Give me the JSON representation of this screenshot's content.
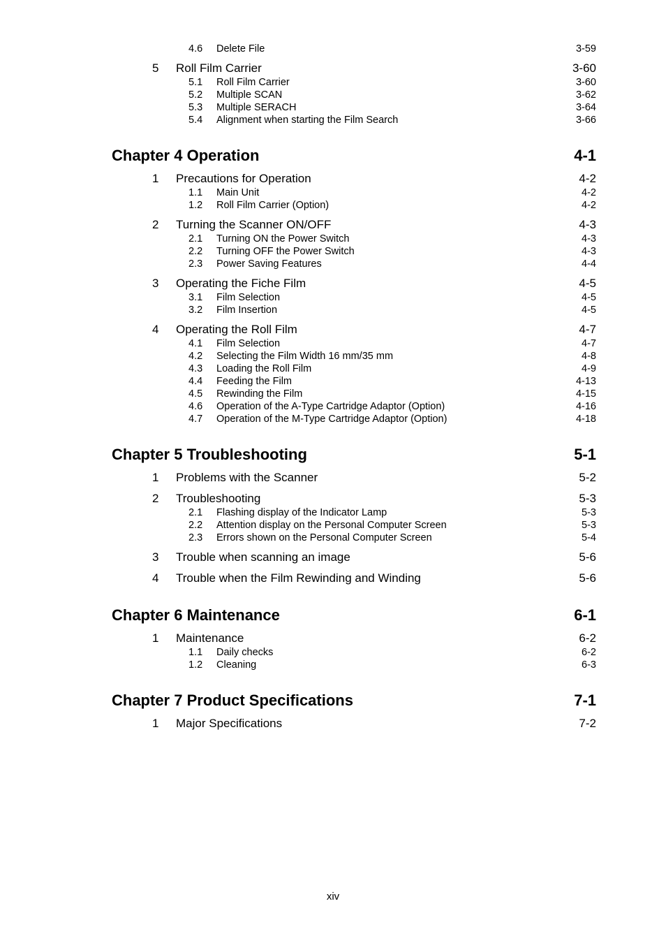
{
  "pre": {
    "subs46": [
      {
        "n": "4.6",
        "t": "Delete File",
        "p": "3-59"
      }
    ],
    "sec5": {
      "n": "5",
      "t": "Roll Film Carrier",
      "p": "3-60"
    },
    "subs5": [
      {
        "n": "5.1",
        "t": "Roll Film Carrier",
        "p": "3-60"
      },
      {
        "n": "5.2",
        "t": "Multiple SCAN",
        "p": "3-62"
      },
      {
        "n": "5.3",
        "t": "Multiple SERACH",
        "p": "3-64"
      },
      {
        "n": "5.4",
        "t": "Alignment when starting the Film Search",
        "p": "3-66"
      }
    ]
  },
  "ch4": {
    "title": "Chapter 4  Operation",
    "p": "4-1",
    "secs": [
      {
        "n": "1",
        "t": "Precautions for Operation",
        "p": "4-2",
        "subs": [
          {
            "n": "1.1",
            "t": "Main Unit",
            "p": "4-2"
          },
          {
            "n": "1.2",
            "t": "Roll Film Carrier (Option)",
            "p": "4-2"
          }
        ]
      },
      {
        "n": "2",
        "t": "Turning the Scanner ON/OFF",
        "p": "4-3",
        "subs": [
          {
            "n": "2.1",
            "t": "Turning ON the Power Switch",
            "p": "4-3"
          },
          {
            "n": "2.2",
            "t": "Turning OFF the Power Switch",
            "p": "4-3"
          },
          {
            "n": "2.3",
            "t": "Power Saving Features",
            "p": "4-4"
          }
        ]
      },
      {
        "n": "3",
        "t": "Operating the Fiche Film",
        "p": "4-5",
        "subs": [
          {
            "n": "3.1",
            "t": "Film Selection",
            "p": "4-5"
          },
          {
            "n": "3.2",
            "t": "Film Insertion",
            "p": "4-5"
          }
        ]
      },
      {
        "n": "4",
        "t": "Operating the Roll Film",
        "p": "4-7",
        "subs": [
          {
            "n": "4.1",
            "t": "Film Selection",
            "p": "4-7"
          },
          {
            "n": "4.2",
            "t": "Selecting the Film Width 16 mm/35 mm",
            "p": "4-8"
          },
          {
            "n": "4.3",
            "t": "Loading the Roll Film",
            "p": "4-9"
          },
          {
            "n": "4.4",
            "t": "Feeding the Film",
            "p": "4-13"
          },
          {
            "n": "4.5",
            "t": "Rewinding the Film",
            "p": "4-15"
          },
          {
            "n": "4.6",
            "t": "Operation of the A-Type Cartridge Adaptor (Option)",
            "p": "4-16"
          },
          {
            "n": "4.7",
            "t": "Operation of the M-Type Cartridge Adaptor (Option)",
            "p": "4-18"
          }
        ]
      }
    ]
  },
  "ch5": {
    "title": "Chapter 5  Troubleshooting",
    "p": "5-1",
    "secs": [
      {
        "n": "1",
        "t": "Problems with the Scanner",
        "p": "5-2",
        "subs": []
      },
      {
        "n": "2",
        "t": "Troubleshooting",
        "p": "5-3",
        "subs": [
          {
            "n": "2.1",
            "t": "Flashing display of the Indicator Lamp",
            "p": "5-3"
          },
          {
            "n": "2.2",
            "t": "Attention display on the Personal Computer Screen",
            "p": "5-3"
          },
          {
            "n": "2.3",
            "t": "Errors shown on the Personal Computer Screen",
            "p": "5-4"
          }
        ]
      },
      {
        "n": "3",
        "t": "Trouble when scanning an image",
        "p": "5-6",
        "subs": []
      },
      {
        "n": "4",
        "t": "Trouble when the Film Rewinding and Winding",
        "p": "5-6",
        "subs": []
      }
    ]
  },
  "ch6": {
    "title": "Chapter 6  Maintenance",
    "p": "6-1",
    "secs": [
      {
        "n": "1",
        "t": "Maintenance",
        "p": "6-2",
        "subs": [
          {
            "n": "1.1",
            "t": "Daily checks",
            "p": "6-2"
          },
          {
            "n": "1.2",
            "t": "Cleaning",
            "p": "6-3"
          }
        ]
      }
    ]
  },
  "ch7": {
    "title": "Chapter 7  Product Specifications",
    "p": "7-1",
    "secs": [
      {
        "n": "1",
        "t": "Major Specifications",
        "p": "7-2",
        "subs": []
      }
    ]
  },
  "footer": "xiv"
}
